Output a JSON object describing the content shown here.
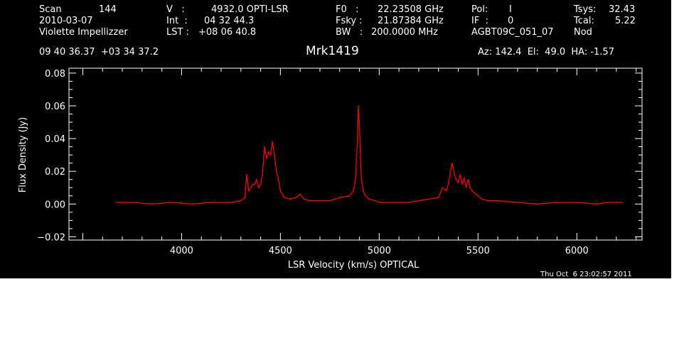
{
  "header": {
    "scan_label": "Scan",
    "scan_value": "144",
    "date": "2010-03-07",
    "observer": "Violette Impellizzer",
    "v_label": "V   :",
    "v_value": "4932.0 OPTI-LSR",
    "int_label": "Int  :",
    "int_value": "04 32 44.3",
    "lst_label": "LST :",
    "lst_value": "+08 06 40.8",
    "f0_label": "F0   :",
    "f0_value": "22.23508 GHz",
    "fsky_label": "Fsky :",
    "fsky_value": "21.87384 GHz",
    "bw_label": "BW   :",
    "bw_value": "200.0000 MHz",
    "pol_label": "Pol:",
    "pol_value": "I",
    "if_label": "IF  :",
    "if_value": "0",
    "project": "AGBT09C_051_07",
    "tsys_label": "Tsys:",
    "tsys_value": "32.43",
    "tcal_label": "Tcal:",
    "tcal_value": "5.22",
    "mode": "Nod",
    "coords": "09 40 36.37  +03 34 37.2",
    "source": "Mrk1419",
    "az_el_ha": "Az: 142.4  El:  49.0  HA: -1.57",
    "timestamp": "Thu Oct  6 23:02:57 2011"
  },
  "colors": {
    "background": "#000000",
    "axes": "#ffffff",
    "trace": "#ff0000"
  },
  "chart_data": {
    "type": "line",
    "title": "Mrk1419",
    "xlabel": "LSR Velocity (km/s) OPTICAL",
    "ylabel": "Flux Density (Jy)",
    "xlim": [
      3430,
      6330
    ],
    "ylim": [
      -0.022,
      0.083
    ],
    "xticks": [
      4000,
      4500,
      5000,
      5500,
      6000
    ],
    "xtick_labels": [
      "4000",
      "4500",
      "5000",
      "5500",
      "6000"
    ],
    "yticks": [
      -0.02,
      0.0,
      0.02,
      0.04,
      0.06,
      0.08
    ],
    "ytick_labels": [
      "−0.02",
      "0.00",
      "0.02",
      "0.04",
      "0.06",
      "0.08"
    ],
    "grid": false,
    "series": [
      {
        "x": [
          3670,
          3750,
          3850,
          3950,
          4050,
          4150,
          4250,
          4300,
          4320,
          4330,
          4340,
          4350,
          4360,
          4370,
          4380,
          4390,
          4400,
          4410,
          4420,
          4430,
          4440,
          4450,
          4460,
          4470,
          4480,
          4490,
          4500,
          4520,
          4550,
          4580,
          4600,
          4620,
          4650,
          4700,
          4750,
          4800,
          4850,
          4870,
          4880,
          4890,
          4895,
          4900,
          4905,
          4910,
          4920,
          4930,
          4950,
          4980,
          5000,
          5050,
          5100,
          5150,
          5200,
          5250,
          5300,
          5320,
          5340,
          5350,
          5360,
          5370,
          5380,
          5390,
          5400,
          5410,
          5420,
          5430,
          5440,
          5450,
          5460,
          5470,
          5480,
          5490,
          5500,
          5520,
          5550,
          5600,
          5700,
          5800,
          5900,
          6000,
          6100,
          6150,
          6200,
          6230
        ],
        "y": [
          0.001,
          0.001,
          0.0,
          0.001,
          0.0,
          0.001,
          0.001,
          0.002,
          0.004,
          0.018,
          0.008,
          0.01,
          0.012,
          0.012,
          0.015,
          0.01,
          0.012,
          0.02,
          0.035,
          0.028,
          0.032,
          0.03,
          0.038,
          0.03,
          0.02,
          0.015,
          0.008,
          0.004,
          0.003,
          0.004,
          0.006,
          0.003,
          0.002,
          0.002,
          0.002,
          0.004,
          0.005,
          0.008,
          0.015,
          0.04,
          0.06,
          0.048,
          0.03,
          0.015,
          0.008,
          0.005,
          0.003,
          0.002,
          0.001,
          0.001,
          0.001,
          0.001,
          0.002,
          0.003,
          0.004,
          0.01,
          0.008,
          0.012,
          0.02,
          0.025,
          0.018,
          0.015,
          0.013,
          0.018,
          0.012,
          0.016,
          0.01,
          0.015,
          0.01,
          0.008,
          0.007,
          0.006,
          0.005,
          0.003,
          0.002,
          0.002,
          0.001,
          0.0,
          0.001,
          0.001,
          0.0,
          0.001,
          0.001,
          0.001
        ]
      }
    ]
  }
}
